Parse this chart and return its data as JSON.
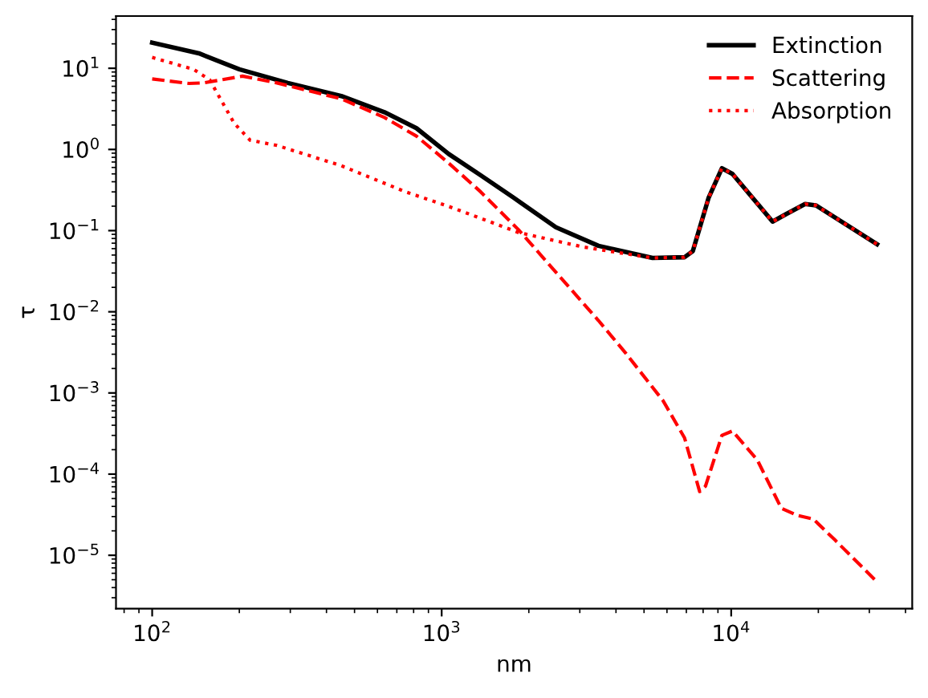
{
  "chart_data": {
    "type": "line",
    "xlabel": "nm",
    "ylabel": "τ",
    "log": "xy",
    "xlim": [
      75,
      42200
    ],
    "ylim": [
      2.2e-06,
      44
    ],
    "xticks": [
      {
        "value": 100,
        "label": "10$^{2}$"
      },
      {
        "value": 1000,
        "label": "10$^{3}$"
      },
      {
        "value": 10000,
        "label": "10$^{4}$"
      }
    ],
    "yticks": [
      {
        "value": 1e-05,
        "label": "10$^{−5}$"
      },
      {
        "value": 0.0001,
        "label": "10$^{−4}$"
      },
      {
        "value": 0.001,
        "label": "10$^{−3}$"
      },
      {
        "value": 0.01,
        "label": "10$^{−2}$"
      },
      {
        "value": 0.1,
        "label": "10$^{−1}$"
      },
      {
        "value": 1,
        "label": "10$^{0}$"
      },
      {
        "value": 10,
        "label": "10$^{1}$"
      }
    ],
    "grid": false,
    "legend": "top right",
    "marker": "none",
    "series": [
      {
        "name": "Extinction",
        "color": "#000000",
        "line_style": "solid",
        "x": [
          100,
          145,
          200,
          294,
          450,
          634,
          818,
          1057,
          1364,
          1770,
          2480,
          3480,
          5350,
          6900,
          7370,
          8360,
          9290,
          10100,
          13900,
          15500,
          18000,
          19600,
          31900
        ],
        "values": [
          20.7,
          15.3,
          9.7,
          6.6,
          4.55,
          2.88,
          1.83,
          0.88,
          0.48,
          0.255,
          0.11,
          0.065,
          0.046,
          0.047,
          0.056,
          0.255,
          0.587,
          0.5,
          0.129,
          0.16,
          0.213,
          0.205,
          0.068
        ]
      },
      {
        "name": "Scattering",
        "color": "#ff0000",
        "line_style": "dashed",
        "x": [
          100,
          134,
          150,
          205,
          270,
          450,
          634,
          818,
          1057,
          1364,
          1840,
          3480,
          4320,
          5820,
          6900,
          7780,
          8150,
          9290,
          10100,
          12300,
          14900,
          16900,
          19200,
          22800,
          31900
        ],
        "values": [
          7.4,
          6.5,
          6.6,
          8.0,
          6.6,
          4.2,
          2.48,
          1.46,
          0.68,
          0.3,
          0.103,
          0.0078,
          0.0031,
          0.0008,
          0.00028,
          6.1e-05,
          7.1e-05,
          0.0003,
          0.00034,
          0.00015,
          3.8e-05,
          3.1e-05,
          2.8e-05,
          1.55e-05,
          4.7e-06
        ]
      },
      {
        "name": "Absorption",
        "color": "#ff0000",
        "line_style": "dotted",
        "x": [
          100,
          139,
          158,
          192,
          218,
          270,
          450,
          751,
          1053,
          1840,
          3070,
          5350,
          6900,
          7370,
          8360,
          9290,
          10100,
          13900,
          15500,
          18000,
          19600,
          31900
        ],
        "values": [
          13.6,
          9.7,
          7.2,
          2.1,
          1.3,
          1.12,
          0.63,
          0.3,
          0.2,
          0.095,
          0.063,
          0.046,
          0.047,
          0.056,
          0.255,
          0.587,
          0.5,
          0.129,
          0.16,
          0.213,
          0.205,
          0.068
        ]
      }
    ]
  }
}
